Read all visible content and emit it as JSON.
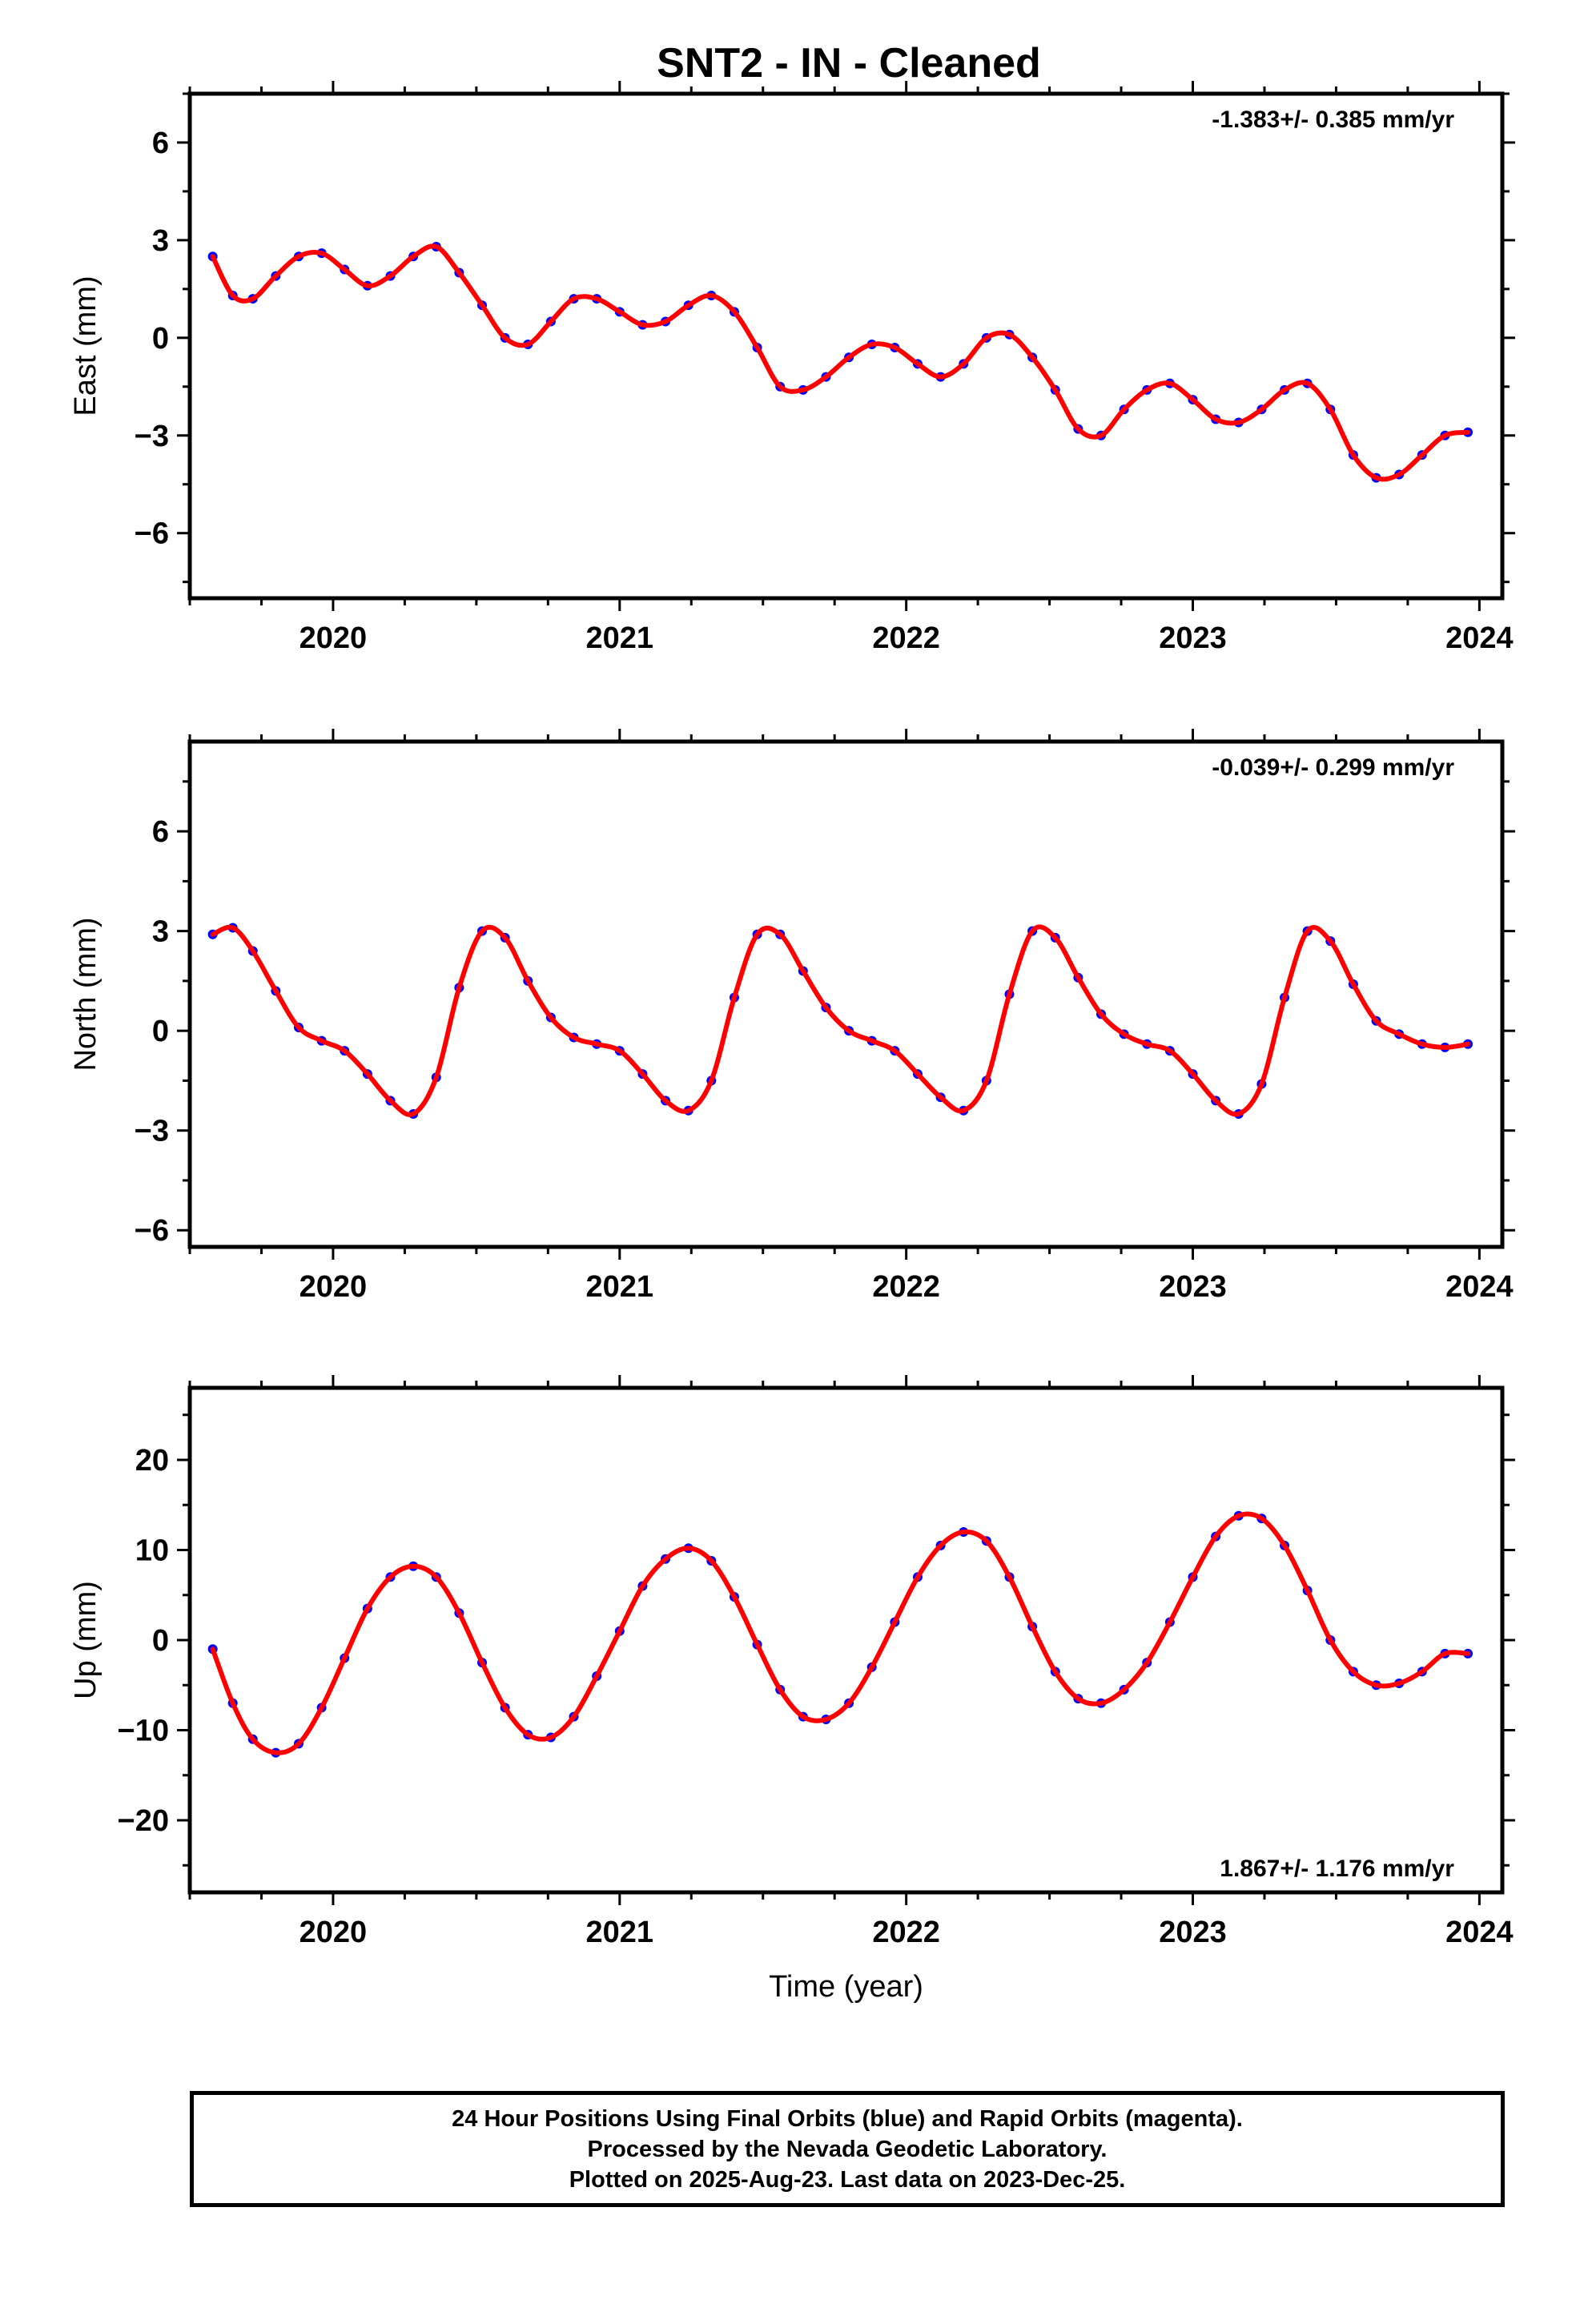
{
  "title": "SNT2  - IN - Cleaned",
  "colors": {
    "final_orbits": "#0000ff",
    "model_fit": "#ff0000",
    "axis": "#000000"
  },
  "chart_data": [
    {
      "type": "scatter",
      "panel": "east",
      "ylabel": "East (mm)",
      "xlim": [
        2019.5,
        2024.08
      ],
      "ylim": [
        -8,
        7.5
      ],
      "yticks": [
        -6,
        -3,
        0,
        3,
        6
      ],
      "xticks": [
        2020,
        2021,
        2022,
        2023,
        2024
      ],
      "rate_label": "-1.383+/- 0.385 mm/yr",
      "rate_position": "top-right",
      "series": [
        {
          "kind": "observations",
          "x": [
            2019.58,
            2019.65,
            2019.72,
            2019.8,
            2019.88,
            2019.96,
            2020.04,
            2020.12,
            2020.2,
            2020.28,
            2020.36,
            2020.44,
            2020.52,
            2020.6,
            2020.68,
            2020.76,
            2020.84,
            2020.92,
            2021.0,
            2021.08,
            2021.16,
            2021.24,
            2021.32,
            2021.4,
            2021.48,
            2021.56,
            2021.64,
            2021.72,
            2021.8,
            2021.88,
            2021.96,
            2022.04,
            2022.12,
            2022.2,
            2022.28,
            2022.36,
            2022.44,
            2022.52,
            2022.6,
            2022.68,
            2022.76,
            2022.84,
            2022.92,
            2023.0,
            2023.08,
            2023.16,
            2023.24,
            2023.32,
            2023.4,
            2023.48,
            2023.56,
            2023.64,
            2023.72,
            2023.8,
            2023.88,
            2023.96
          ],
          "y": [
            2.5,
            1.3,
            1.2,
            1.9,
            2.5,
            2.6,
            2.1,
            1.6,
            1.9,
            2.5,
            2.8,
            2.0,
            1.0,
            0.0,
            -0.2,
            0.5,
            1.2,
            1.2,
            0.8,
            0.4,
            0.5,
            1.0,
            1.3,
            0.8,
            -0.3,
            -1.5,
            -1.6,
            -1.2,
            -0.6,
            -0.2,
            -0.3,
            -0.8,
            -1.2,
            -0.8,
            0.0,
            0.1,
            -0.6,
            -1.6,
            -2.8,
            -3.0,
            -2.2,
            -1.6,
            -1.4,
            -1.9,
            -2.5,
            -2.6,
            -2.2,
            -1.6,
            -1.4,
            -2.2,
            -3.6,
            -4.3,
            -4.2,
            -3.6,
            -3.0,
            -2.9
          ]
        },
        {
          "kind": "model_fit",
          "x": [
            2019.58,
            2019.65,
            2019.72,
            2019.8,
            2019.88,
            2019.96,
            2020.04,
            2020.12,
            2020.2,
            2020.28,
            2020.36,
            2020.44,
            2020.52,
            2020.6,
            2020.68,
            2020.76,
            2020.84,
            2020.92,
            2021.0,
            2021.08,
            2021.16,
            2021.24,
            2021.32,
            2021.4,
            2021.48,
            2021.56,
            2021.64,
            2021.72,
            2021.8,
            2021.88,
            2021.96,
            2022.04,
            2022.12,
            2022.2,
            2022.28,
            2022.36,
            2022.44,
            2022.52,
            2022.6,
            2022.68,
            2022.76,
            2022.84,
            2022.92,
            2023.0,
            2023.08,
            2023.16,
            2023.24,
            2023.32,
            2023.4,
            2023.48,
            2023.56,
            2023.64,
            2023.72,
            2023.8,
            2023.88,
            2023.96
          ],
          "y": [
            2.5,
            1.3,
            1.2,
            1.9,
            2.5,
            2.6,
            2.1,
            1.6,
            1.9,
            2.5,
            2.8,
            2.0,
            1.0,
            0.0,
            -0.2,
            0.5,
            1.2,
            1.2,
            0.8,
            0.4,
            0.5,
            1.0,
            1.3,
            0.8,
            -0.3,
            -1.5,
            -1.6,
            -1.2,
            -0.6,
            -0.2,
            -0.3,
            -0.8,
            -1.2,
            -0.8,
            0.0,
            0.1,
            -0.6,
            -1.6,
            -2.8,
            -3.0,
            -2.2,
            -1.6,
            -1.4,
            -1.9,
            -2.5,
            -2.6,
            -2.2,
            -1.6,
            -1.4,
            -2.2,
            -3.6,
            -4.3,
            -4.2,
            -3.6,
            -3.0,
            -2.9
          ]
        }
      ]
    },
    {
      "type": "scatter",
      "panel": "north",
      "ylabel": "North (mm)",
      "xlim": [
        2019.5,
        2024.08
      ],
      "ylim": [
        -6.5,
        8.7
      ],
      "yticks": [
        -6,
        -3,
        0,
        3,
        6
      ],
      "xticks": [
        2020,
        2021,
        2022,
        2023,
        2024
      ],
      "rate_label": "-0.039+/- 0.299 mm/yr",
      "rate_position": "top-right",
      "series": [
        {
          "kind": "observations",
          "x": [
            2019.58,
            2019.65,
            2019.72,
            2019.8,
            2019.88,
            2019.96,
            2020.04,
            2020.12,
            2020.2,
            2020.28,
            2020.36,
            2020.44,
            2020.52,
            2020.6,
            2020.68,
            2020.76,
            2020.84,
            2020.92,
            2021.0,
            2021.08,
            2021.16,
            2021.24,
            2021.32,
            2021.4,
            2021.48,
            2021.56,
            2021.64,
            2021.72,
            2021.8,
            2021.88,
            2021.96,
            2022.04,
            2022.12,
            2022.2,
            2022.28,
            2022.36,
            2022.44,
            2022.52,
            2022.6,
            2022.68,
            2022.76,
            2022.84,
            2022.92,
            2023.0,
            2023.08,
            2023.16,
            2023.24,
            2023.32,
            2023.4,
            2023.48,
            2023.56,
            2023.64,
            2023.72,
            2023.8,
            2023.88,
            2023.96
          ],
          "y": [
            2.9,
            3.1,
            2.4,
            1.2,
            0.1,
            -0.3,
            -0.6,
            -1.3,
            -2.1,
            -2.5,
            -1.4,
            1.3,
            3.0,
            2.8,
            1.5,
            0.4,
            -0.2,
            -0.4,
            -0.6,
            -1.3,
            -2.1,
            -2.4,
            -1.5,
            1.0,
            2.9,
            2.9,
            1.8,
            0.7,
            0.0,
            -0.3,
            -0.6,
            -1.3,
            -2.0,
            -2.4,
            -1.5,
            1.1,
            3.0,
            2.8,
            1.6,
            0.5,
            -0.1,
            -0.4,
            -0.6,
            -1.3,
            -2.1,
            -2.5,
            -1.6,
            1.0,
            3.0,
            2.7,
            1.4,
            0.3,
            -0.1,
            -0.4,
            -0.5,
            -0.4
          ]
        },
        {
          "kind": "model_fit",
          "x": [
            2019.58,
            2019.65,
            2019.72,
            2019.8,
            2019.88,
            2019.96,
            2020.04,
            2020.12,
            2020.2,
            2020.28,
            2020.36,
            2020.44,
            2020.52,
            2020.6,
            2020.68,
            2020.76,
            2020.84,
            2020.92,
            2021.0,
            2021.08,
            2021.16,
            2021.24,
            2021.32,
            2021.4,
            2021.48,
            2021.56,
            2021.64,
            2021.72,
            2021.8,
            2021.88,
            2021.96,
            2022.04,
            2022.12,
            2022.2,
            2022.28,
            2022.36,
            2022.44,
            2022.52,
            2022.6,
            2022.68,
            2022.76,
            2022.84,
            2022.92,
            2023.0,
            2023.08,
            2023.16,
            2023.24,
            2023.32,
            2023.4,
            2023.48,
            2023.56,
            2023.64,
            2023.72,
            2023.8,
            2023.88,
            2023.96
          ],
          "y": [
            2.9,
            3.1,
            2.4,
            1.2,
            0.1,
            -0.3,
            -0.6,
            -1.3,
            -2.1,
            -2.5,
            -1.4,
            1.3,
            3.0,
            2.8,
            1.5,
            0.4,
            -0.2,
            -0.4,
            -0.6,
            -1.3,
            -2.1,
            -2.4,
            -1.5,
            1.0,
            2.9,
            2.9,
            1.8,
            0.7,
            0.0,
            -0.3,
            -0.6,
            -1.3,
            -2.0,
            -2.4,
            -1.5,
            1.1,
            3.0,
            2.8,
            1.6,
            0.5,
            -0.1,
            -0.4,
            -0.6,
            -1.3,
            -2.1,
            -2.5,
            -1.6,
            1.0,
            3.0,
            2.7,
            1.4,
            0.3,
            -0.1,
            -0.4,
            -0.5,
            -0.4
          ]
        }
      ]
    },
    {
      "type": "scatter",
      "panel": "up",
      "ylabel": "Up (mm)",
      "xlabel": "Time (year)",
      "xlim": [
        2019.5,
        2024.08
      ],
      "ylim": [
        -28,
        28
      ],
      "yticks": [
        -20,
        -10,
        0,
        10,
        20
      ],
      "xticks": [
        2020,
        2021,
        2022,
        2023,
        2024
      ],
      "rate_label": "1.867+/- 1.176 mm/yr",
      "rate_position": "bottom-right",
      "series": [
        {
          "kind": "observations",
          "x": [
            2019.58,
            2019.65,
            2019.72,
            2019.8,
            2019.88,
            2019.96,
            2020.04,
            2020.12,
            2020.2,
            2020.28,
            2020.36,
            2020.44,
            2020.52,
            2020.6,
            2020.68,
            2020.76,
            2020.84,
            2020.92,
            2021.0,
            2021.08,
            2021.16,
            2021.24,
            2021.32,
            2021.4,
            2021.48,
            2021.56,
            2021.64,
            2021.72,
            2021.8,
            2021.88,
            2021.96,
            2022.04,
            2022.12,
            2022.2,
            2022.28,
            2022.36,
            2022.44,
            2022.52,
            2022.6,
            2022.68,
            2022.76,
            2022.84,
            2022.92,
            2023.0,
            2023.08,
            2023.16,
            2023.24,
            2023.32,
            2023.4,
            2023.48,
            2023.56,
            2023.64,
            2023.72,
            2023.8,
            2023.88,
            2023.96
          ],
          "y": [
            -1,
            -7,
            -11,
            -12.5,
            -11.5,
            -7.5,
            -2,
            3.5,
            7,
            8.2,
            7,
            3,
            -2.5,
            -7.5,
            -10.5,
            -10.8,
            -8.5,
            -4,
            1,
            6,
            9,
            10.2,
            8.8,
            4.8,
            -0.5,
            -5.5,
            -8.5,
            -8.8,
            -7,
            -3,
            2,
            7,
            10.5,
            12,
            11,
            7,
            1.5,
            -3.5,
            -6.5,
            -7,
            -5.5,
            -2.5,
            2,
            7,
            11.5,
            13.8,
            13.5,
            10.5,
            5.5,
            0,
            -3.5,
            -5,
            -4.8,
            -3.5,
            -1.5,
            -1.5
          ]
        },
        {
          "kind": "model_fit",
          "x": [
            2019.58,
            2019.65,
            2019.72,
            2019.8,
            2019.88,
            2019.96,
            2020.04,
            2020.12,
            2020.2,
            2020.28,
            2020.36,
            2020.44,
            2020.52,
            2020.6,
            2020.68,
            2020.76,
            2020.84,
            2020.92,
            2021.0,
            2021.08,
            2021.16,
            2021.24,
            2021.32,
            2021.4,
            2021.48,
            2021.56,
            2021.64,
            2021.72,
            2021.8,
            2021.88,
            2021.96,
            2022.04,
            2022.12,
            2022.2,
            2022.28,
            2022.36,
            2022.44,
            2022.52,
            2022.6,
            2022.68,
            2022.76,
            2022.84,
            2022.92,
            2023.0,
            2023.08,
            2023.16,
            2023.24,
            2023.32,
            2023.4,
            2023.48,
            2023.56,
            2023.64,
            2023.72,
            2023.8,
            2023.88,
            2023.96
          ],
          "y": [
            -1,
            -7,
            -11,
            -12.5,
            -11.5,
            -7.5,
            -2,
            3.5,
            7,
            8.2,
            7,
            3,
            -2.5,
            -7.5,
            -10.5,
            -10.8,
            -8.5,
            -4,
            1,
            6,
            9,
            10.2,
            8.8,
            4.8,
            -0.5,
            -5.5,
            -8.5,
            -8.8,
            -7,
            -3,
            2,
            7,
            10.5,
            12,
            11,
            7,
            1.5,
            -3.5,
            -6.5,
            -7,
            -5.5,
            -2.5,
            2,
            7,
            11.5,
            13.8,
            13.5,
            10.5,
            5.5,
            0,
            -3.5,
            -5,
            -4.8,
            -3.5,
            -1.5,
            -1.5
          ]
        }
      ]
    }
  ],
  "footer": {
    "line1": "24 Hour Positions Using Final Orbits (blue) and Rapid Orbits (magenta).",
    "line2": "Processed by the Nevada Geodetic Laboratory.",
    "line3": "Plotted on 2025-Aug-23. Last data on 2023-Dec-25."
  }
}
